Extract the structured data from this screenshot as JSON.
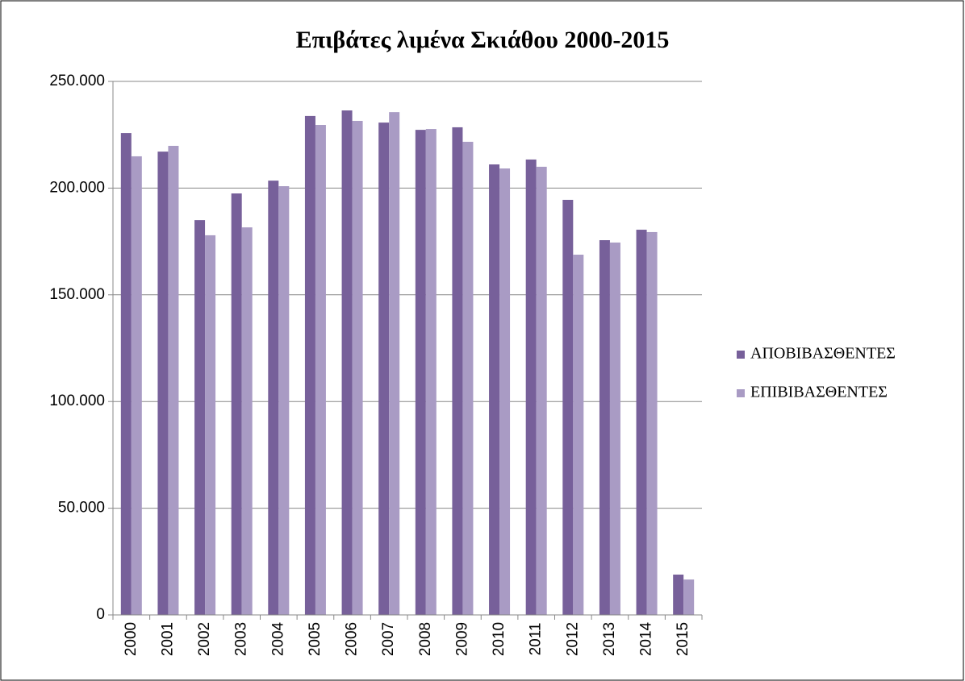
{
  "chart_data": {
    "type": "bar",
    "title": "Επιβάτες λιμένα Σκιάθου 2000-2015",
    "categories": [
      "2000",
      "2001",
      "2002",
      "2003",
      "2004",
      "2005",
      "2006",
      "2007",
      "2008",
      "2009",
      "2010",
      "2011",
      "2012",
      "2013",
      "2014",
      "2015"
    ],
    "series": [
      {
        "name": "ΑΠΟΒΙΒΑΣΘΕΝΤΕΣ",
        "color": "#77609a",
        "values": [
          225800,
          217100,
          185000,
          197500,
          203500,
          233800,
          236400,
          230700,
          227300,
          228500,
          211100,
          213400,
          194500,
          175600,
          180500,
          18900
        ]
      },
      {
        "name": "ΕΠΙΒΙΒΑΣΘΕΝΤΕΣ",
        "color": "#a99bc4",
        "values": [
          214900,
          219800,
          177900,
          181600,
          200900,
          229600,
          231500,
          235600,
          227700,
          221700,
          209200,
          210000,
          168800,
          174500,
          179400,
          16600
        ]
      }
    ],
    "ylim": [
      0,
      250000
    ],
    "yticks": [
      0,
      {
        "value": 50000,
        "label": "50.000"
      },
      {
        "value": 100000,
        "label": "100.000"
      },
      {
        "value": 150000,
        "label": "150.000"
      },
      {
        "value": 200000,
        "label": "200.000"
      },
      {
        "value": 250000,
        "label": "250.000"
      }
    ],
    "grid": true,
    "legend": "right"
  }
}
